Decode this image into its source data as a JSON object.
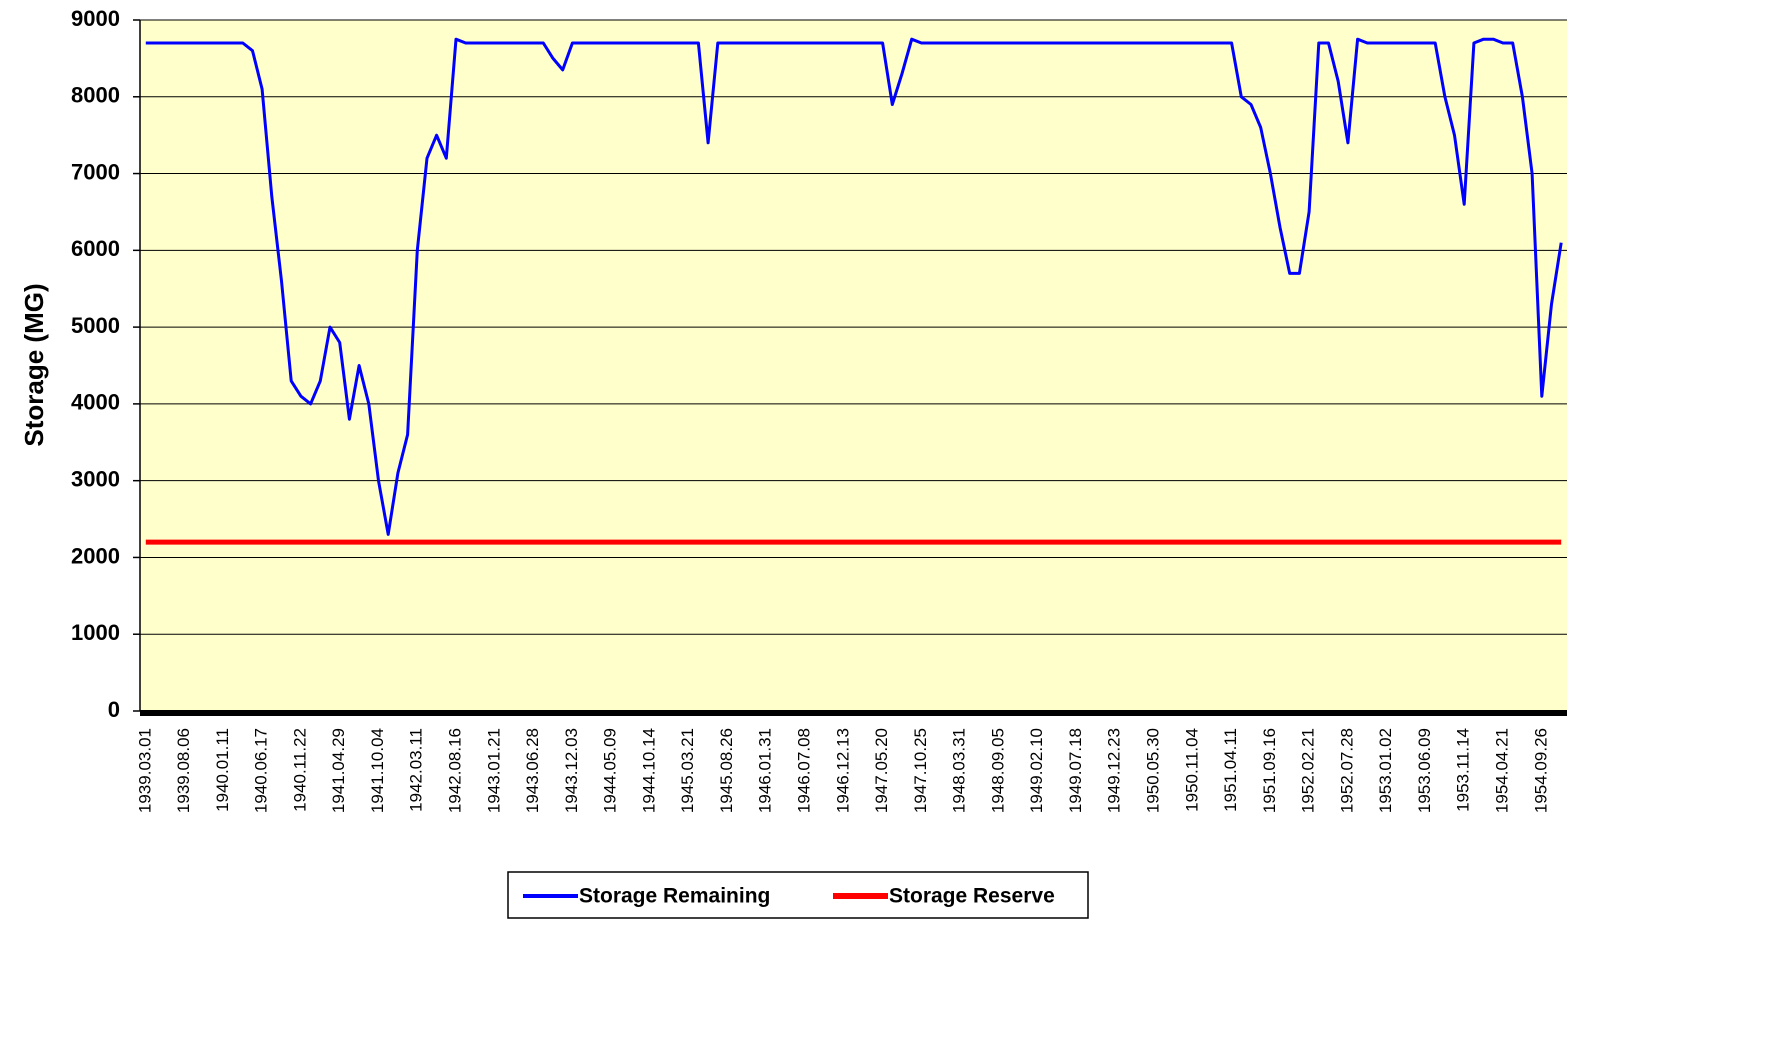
{
  "chart_data": {
    "type": "line",
    "y_label": "Storage (MG)",
    "categories": [
      "1939.03.01",
      null,
      null,
      null,
      "1939.08.06",
      null,
      null,
      null,
      "1940.01.11",
      null,
      null,
      null,
      "1940.06.17",
      null,
      null,
      null,
      "1940.11.22",
      null,
      null,
      null,
      "1941.04.29",
      null,
      null,
      null,
      "1941.10.04",
      null,
      null,
      null,
      "1942.03.11",
      null,
      null,
      null,
      "1942.08.16",
      null,
      null,
      null,
      "1943.01.21",
      null,
      null,
      null,
      "1943.06.28",
      null,
      null,
      null,
      "1943.12.03",
      null,
      null,
      null,
      "1944.05.09",
      null,
      null,
      null,
      "1944.10.14",
      null,
      null,
      null,
      "1945.03.21",
      null,
      null,
      null,
      "1945.08.26",
      null,
      null,
      null,
      "1946.01.31",
      null,
      null,
      null,
      "1946.07.08",
      null,
      null,
      null,
      "1946.12.13",
      null,
      null,
      null,
      "1947.05.20",
      null,
      null,
      null,
      "1947.10.25",
      null,
      null,
      null,
      "1948.03.31",
      null,
      null,
      null,
      "1948.09.05",
      null,
      null,
      null,
      "1949.02.10",
      null,
      null,
      null,
      "1949.07.18",
      null,
      null,
      null,
      "1949.12.23",
      null,
      null,
      null,
      "1950.05.30",
      null,
      null,
      null,
      "1950.11.04",
      null,
      null,
      null,
      "1951.04.11",
      null,
      null,
      null,
      "1951.09.16",
      null,
      null,
      null,
      "1952.02.21",
      null,
      null,
      null,
      "1952.07.28",
      null,
      null,
      null,
      "1953.01.02",
      null,
      null,
      null,
      "1953.06.09",
      null,
      null,
      null,
      "1953.11.14",
      null,
      null,
      null,
      "1954.04.21",
      null,
      null,
      null,
      "1954.09.26",
      null,
      null
    ],
    "series": [
      {
        "name": "Storage Remaining",
        "color": "#0000ff",
        "values": [
          8700,
          8700,
          8700,
          8700,
          8700,
          8700,
          8700,
          8700,
          8700,
          8700,
          8700,
          8600,
          8100,
          6700,
          5600,
          4300,
          4100,
          4000,
          4300,
          5000,
          4800,
          3800,
          4500,
          4000,
          3000,
          2300,
          3100,
          3600,
          6000,
          7200,
          7500,
          7200,
          8750,
          8700,
          8700,
          8700,
          8700,
          8700,
          8700,
          8700,
          8700,
          8700,
          8500,
          8350,
          8700,
          8700,
          8700,
          8700,
          8700,
          8700,
          8700,
          8700,
          8700,
          8700,
          8700,
          8700,
          8700,
          8700,
          7400,
          8700,
          8700,
          8700,
          8700,
          8700,
          8700,
          8700,
          8700,
          8700,
          8700,
          8700,
          8700,
          8700,
          8700,
          8700,
          8700,
          8700,
          8700,
          7900,
          8300,
          8750,
          8700,
          8700,
          8700,
          8700,
          8700,
          8700,
          8700,
          8700,
          8700,
          8700,
          8700,
          8700,
          8700,
          8700,
          8700,
          8700,
          8700,
          8700,
          8700,
          8700,
          8700,
          8700,
          8700,
          8700,
          8700,
          8700,
          8700,
          8700,
          8700,
          8700,
          8700,
          8700,
          8700,
          8000,
          7900,
          7600,
          7000,
          6300,
          5700,
          5700,
          6500,
          8700,
          8700,
          8200,
          7400,
          8750,
          8700,
          8700,
          8700,
          8700,
          8700,
          8700,
          8700,
          8700,
          8000,
          7500,
          6600,
          8700,
          8750,
          8750,
          8700,
          8700,
          8000,
          7000,
          4100,
          5300,
          6100
        ]
      },
      {
        "name": "Storage Reserve",
        "color": "#ff0000",
        "values": [
          2200,
          2200,
          2200,
          2200,
          2200,
          2200,
          2200,
          2200,
          2200,
          2200,
          2200,
          2200,
          2200,
          2200,
          2200,
          2200,
          2200,
          2200,
          2200,
          2200,
          2200,
          2200,
          2200,
          2200,
          2200,
          2200,
          2200,
          2200,
          2200,
          2200,
          2200,
          2200,
          2200,
          2200,
          2200,
          2200,
          2200,
          2200,
          2200,
          2200,
          2200,
          2200,
          2200,
          2200,
          2200,
          2200,
          2200,
          2200,
          2200,
          2200,
          2200,
          2200,
          2200,
          2200,
          2200,
          2200,
          2200,
          2200,
          2200,
          2200,
          2200,
          2200,
          2200,
          2200,
          2200,
          2200,
          2200,
          2200,
          2200,
          2200,
          2200,
          2200,
          2200,
          2200,
          2200,
          2200,
          2200,
          2200,
          2200,
          2200,
          2200,
          2200,
          2200,
          2200,
          2200,
          2200,
          2200,
          2200,
          2200,
          2200,
          2200,
          2200,
          2200,
          2200,
          2200,
          2200,
          2200,
          2200,
          2200,
          2200,
          2200,
          2200,
          2200,
          2200,
          2200,
          2200,
          2200,
          2200,
          2200,
          2200,
          2200,
          2200,
          2200,
          2200,
          2200,
          2200,
          2200,
          2200,
          2200,
          2200,
          2200,
          2200,
          2200,
          2200,
          2200,
          2200,
          2200,
          2200,
          2200,
          2200,
          2200,
          2200,
          2200,
          2200,
          2200,
          2200,
          2200,
          2200,
          2200,
          2200,
          2200,
          2200,
          2200,
          2200,
          2200,
          2200,
          2200
        ]
      }
    ],
    "ylim": [
      0,
      9000
    ],
    "yticks": [
      0,
      1000,
      2000,
      3000,
      4000,
      5000,
      6000,
      7000,
      8000,
      9000
    ],
    "grid": true,
    "legend": "bottom"
  }
}
